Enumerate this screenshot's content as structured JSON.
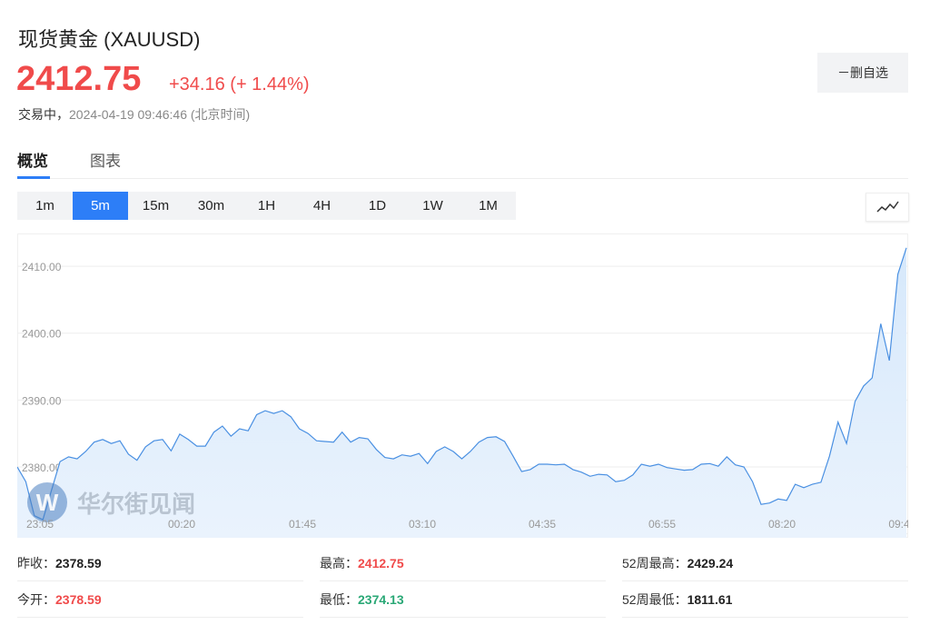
{
  "header": {
    "title": "现货黄金 (XAUUSD)",
    "price": "2412.75",
    "change": "+34.16 (+ 1.44%)",
    "status": "交易中，",
    "time": "2024-04-19 09:46:46 (北京时间)",
    "watch_button": "－删自选"
  },
  "tabs": [
    "概览",
    "图表"
  ],
  "active_tab": 0,
  "intervals": [
    "1m",
    "5m",
    "15m",
    "30m",
    "1H",
    "4H",
    "1D",
    "1W",
    "1M"
  ],
  "active_interval": 1,
  "chart_data": {
    "type": "area",
    "color": "#4a90e2",
    "ylim": [
      2369.4,
      2414.9
    ],
    "yticks": [
      {
        "value": 2370,
        "label": "2370.00"
      },
      {
        "value": 2380,
        "label": "2380.00"
      },
      {
        "value": 2390,
        "label": "2390.00"
      },
      {
        "value": 2400,
        "label": "2400.00"
      },
      {
        "value": 2410,
        "label": "2410.00"
      }
    ],
    "grid": true,
    "xtick_labels": [
      "23:05",
      "00:20",
      "01:45",
      "03:10",
      "04:35",
      "06:55",
      "08:20",
      "09:4"
    ],
    "watermark": "华尔街见闻",
    "values": [
      2380.0,
      2377.8,
      2372.7,
      2372.1,
      2376.5,
      2380.8,
      2381.5,
      2381.2,
      2382.3,
      2383.7,
      2384.1,
      2383.5,
      2383.9,
      2381.9,
      2381.0,
      2383.0,
      2383.9,
      2384.1,
      2382.4,
      2384.9,
      2384.1,
      2383.1,
      2383.1,
      2385.2,
      2386.1,
      2384.6,
      2385.7,
      2385.4,
      2387.8,
      2388.4,
      2388.0,
      2388.4,
      2387.5,
      2385.7,
      2385.0,
      2383.9,
      2383.8,
      2383.7,
      2385.2,
      2383.7,
      2384.4,
      2384.2,
      2382.6,
      2381.4,
      2381.2,
      2381.8,
      2381.6,
      2382.0,
      2380.5,
      2382.3,
      2383.0,
      2382.3,
      2381.2,
      2382.3,
      2383.7,
      2384.4,
      2384.5,
      2383.8,
      2381.6,
      2379.3,
      2379.6,
      2380.4,
      2380.4,
      2380.3,
      2380.4,
      2379.6,
      2379.2,
      2378.6,
      2378.9,
      2378.8,
      2377.8,
      2378.0,
      2378.8,
      2380.4,
      2380.1,
      2380.4,
      2379.9,
      2379.7,
      2379.5,
      2379.6,
      2380.4,
      2380.5,
      2380.1,
      2381.5,
      2380.3,
      2380.0,
      2377.8,
      2374.4,
      2374.6,
      2375.2,
      2375.0,
      2377.4,
      2376.9,
      2377.4,
      2377.7,
      2381.6,
      2386.7,
      2383.5,
      2389.8,
      2392.1,
      2393.3,
      2401.4,
      2395.9,
      2408.8,
      2412.75
    ]
  },
  "stats": [
    [
      {
        "label": "昨收：",
        "value": "2378.59",
        "color": "#222"
      },
      {
        "label": "最高：",
        "value": "2412.75",
        "color": "#f04b4b"
      },
      {
        "label": "52周最高：",
        "value": "2429.24",
        "color": "#222"
      }
    ],
    [
      {
        "label": "今开：",
        "value": "2378.59",
        "color": "#f04b4b"
      },
      {
        "label": "最低：",
        "value": "2374.13",
        "color": "#2aa876"
      },
      {
        "label": "52周最低：",
        "value": "1811.61",
        "color": "#222"
      }
    ]
  ]
}
